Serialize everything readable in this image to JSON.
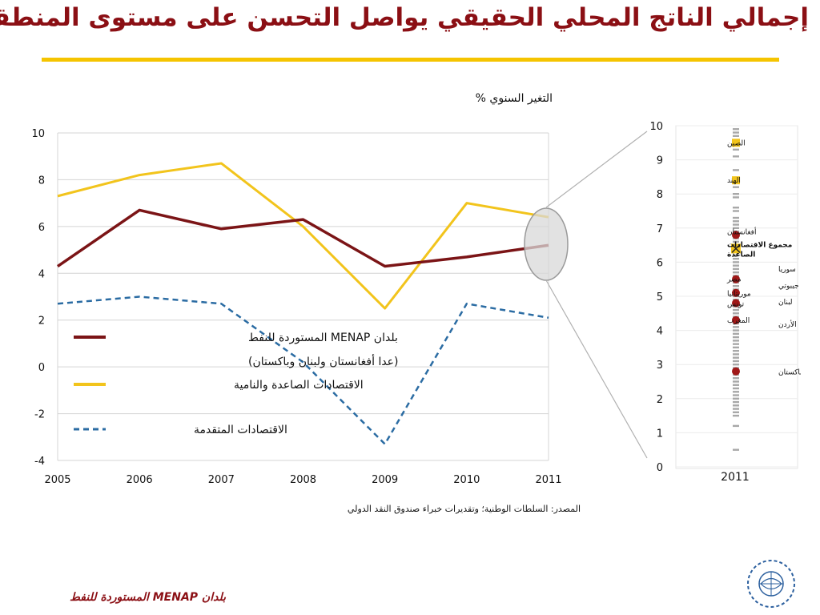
{
  "header": {
    "title": "إجمالي الناتج المحلي الحقيقي يواصل التحسن على مستوى المنطقة"
  },
  "chart_unit_label": "التغير السنوي %",
  "source_note": "المصدر: السلطات الوطنية؛ وتقديرات خبراء صندوق النقد الدولي",
  "footer_note": "بلدان MENAP المستوردة للنفط",
  "colors": {
    "accent": "#f5c400",
    "title": "#8b0f14",
    "menap_series": "#7b1416",
    "emerging_series": "#f2c41c",
    "advanced_series": "#2b6ca3"
  },
  "chart_data": [
    {
      "type": "line",
      "x": [
        2005,
        2006,
        2007,
        2008,
        2009,
        2010,
        2011
      ],
      "xticks": [
        "2005",
        "2006",
        "2007",
        "2008",
        "2009",
        "2010",
        "2011"
      ],
      "ylim": [
        -4,
        10
      ],
      "yticks": [
        "10",
        "8",
        "6",
        "4",
        "2",
        "0",
        "-2",
        "-4"
      ],
      "grid": true,
      "legend_position": "center-left",
      "series": [
        {
          "name": "بلدان MENAP المستوردة للنفط",
          "name_line2": "(عدا أفغانستان ولبنان وباكستان)",
          "values": [
            4.3,
            6.7,
            5.9,
            6.3,
            4.3,
            4.7,
            5.2
          ],
          "color": "#7b1416",
          "style": "solid"
        },
        {
          "name": "الاقتصادات الصاعدة والنامية",
          "values": [
            7.3,
            8.2,
            8.7,
            6.0,
            2.5,
            7.0,
            6.4
          ],
          "color": "#f2c41c",
          "style": "solid"
        },
        {
          "name": "الاقتصادات المتقدمة",
          "values": [
            2.7,
            3.0,
            2.7,
            0.2,
            -3.3,
            2.7,
            2.1
          ],
          "color": "#2b6ca3",
          "style": "dashed"
        }
      ]
    },
    {
      "type": "scatter",
      "x_category": "2011",
      "ylim": [
        0,
        10
      ],
      "yticks": [
        "10",
        "9",
        "8",
        "7",
        "6",
        "5",
        "4",
        "3",
        "2",
        "1",
        "0"
      ],
      "highlighted_points": [
        {
          "label": "الصين",
          "value": 9.5,
          "marker": "square",
          "color": "#f2c41c"
        },
        {
          "label": "الهند",
          "value": 8.4,
          "marker": "square",
          "color": "#f2c41c"
        },
        {
          "label": "أفغانستان",
          "value": 6.8,
          "marker": "circle",
          "color": "#a01818"
        },
        {
          "label": "مجموع الاقتصادات الصاعدة",
          "value": 6.4,
          "marker": "x-square",
          "color": "#f2c41c"
        },
        {
          "label": "مصر",
          "value": 5.5,
          "marker": "circle",
          "color": "#a01818"
        },
        {
          "label": "سوريا",
          "value": 5.4,
          "marker": "circle",
          "color": "#a01818"
        },
        {
          "label": "جيبوتي",
          "value": 5.2,
          "marker": "circle",
          "color": "#a01818"
        },
        {
          "label": "موريتانيا",
          "value": 5.1,
          "marker": "circle",
          "color": "#a01818"
        },
        {
          "label": "لبنان",
          "value": 5.0,
          "marker": "circle",
          "color": "#a01818"
        },
        {
          "label": "تونس",
          "value": 4.8,
          "marker": "circle",
          "color": "#a01818"
        },
        {
          "label": "المغرب",
          "value": 4.3,
          "marker": "circle",
          "color": "#a01818"
        },
        {
          "label": "الأردن",
          "value": 4.2,
          "marker": "circle",
          "color": "#a01818"
        },
        {
          "label": "باكستان",
          "value": 2.8,
          "marker": "circle",
          "color": "#a01818"
        }
      ],
      "other_countries_values": [
        9.9,
        9.8,
        9.7,
        9.3,
        9.1,
        8.7,
        8.2,
        8.0,
        7.9,
        7.6,
        7.5,
        7.3,
        7.2,
        7.1,
        7.0,
        6.9,
        6.7,
        6.6,
        6.5,
        6.3,
        6.2,
        6.1,
        6.0,
        5.9,
        5.8,
        5.7,
        5.6,
        5.5,
        5.4,
        5.3,
        5.2,
        5.1,
        5.0,
        4.9,
        4.8,
        4.7,
        4.6,
        4.5,
        4.4,
        4.3,
        4.2,
        4.1,
        4.0,
        3.9,
        3.8,
        3.7,
        3.6,
        3.5,
        3.4,
        3.3,
        3.2,
        3.1,
        3.0,
        2.9,
        2.8,
        2.7,
        2.6,
        2.5,
        2.4,
        2.3,
        2.2,
        2.1,
        2.0,
        1.9,
        1.8,
        1.7,
        1.6,
        1.5,
        1.2,
        0.5
      ]
    }
  ]
}
